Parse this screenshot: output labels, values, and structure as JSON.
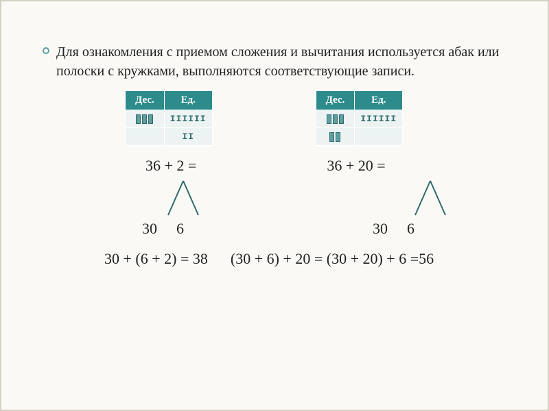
{
  "intro": "Для ознакомления с приемом сложения и вычитания используется абак или полоски с кружками, выполняются соответствующие записи.",
  "table_headers": {
    "tens": "Дес.",
    "ones": "Ед."
  },
  "left_table": {
    "row1_tens_count": 3,
    "row1_ones": "IIIIII",
    "row2_tens_count": 0,
    "row2_ones": "II"
  },
  "right_table": {
    "row1_tens_count": 3,
    "row1_ones": "IIIIII",
    "row2_tens_count": 2,
    "row2_ones": ""
  },
  "eq_left": "36 + 2 =",
  "eq_right": "36 + 20 =",
  "parts_left_a": "30",
  "parts_left_b": "6",
  "parts_right_a": "30",
  "parts_right_b": "6",
  "final_left": "30 + (6 + 2) = 38",
  "final_right": "(30 + 6) + 20 = (30 + 20) + 6 =56",
  "colors": {
    "header_bg": "#2e8b8b",
    "header_fg": "#ffffff",
    "cell_bg": "#edf3f3",
    "mark_fill": "#5f9ea0",
    "mark_border": "#2e6b6b",
    "page_bg": "#faf9f5",
    "page_border": "#d5d1c1"
  }
}
